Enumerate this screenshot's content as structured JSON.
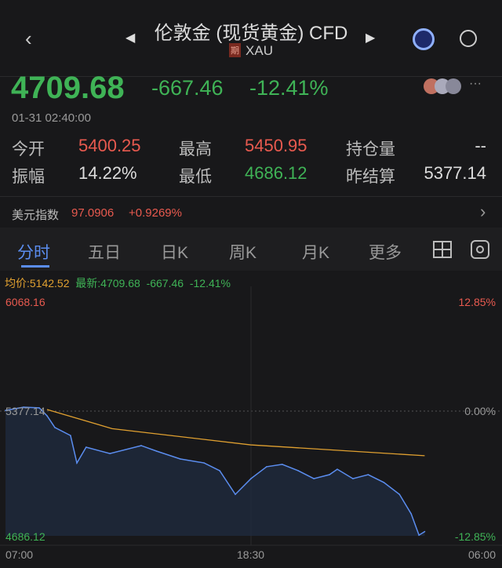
{
  "header": {
    "title": "伦敦金 (现货黄金) CFD",
    "tag": "期",
    "symbol": "XAU"
  },
  "quote": {
    "price": "4709.68",
    "change": "-667.46",
    "change_pct": "-12.41%",
    "time": "01-31 02:40:00",
    "more": "···"
  },
  "stats": [
    {
      "label": "今开",
      "value": "5400.25",
      "color": "red"
    },
    {
      "label": "最高",
      "value": "5450.95",
      "color": "red"
    },
    {
      "label": "持仓量",
      "value": "--",
      "color": "white"
    },
    {
      "label": "振幅",
      "value": "14.22%",
      "color": "white"
    },
    {
      "label": "最低",
      "value": "4686.12",
      "color": "green"
    },
    {
      "label": "昨结算",
      "value": "5377.14",
      "color": "white"
    }
  ],
  "usd_index": {
    "label": "美元指数",
    "value": "97.0906",
    "change": "+0.9269%"
  },
  "tabs": [
    {
      "label": "分时",
      "active": true
    },
    {
      "label": "五日"
    },
    {
      "label": "日K"
    },
    {
      "label": "周K"
    },
    {
      "label": "月K"
    },
    {
      "label": "更多"
    }
  ],
  "chart_info": {
    "avg": "均价:5142.52",
    "latest": "最新:4709.68",
    "change": "-667.46",
    "change_pct": "-12.41%"
  },
  "chart_data": {
    "type": "line",
    "y_top_label": "6068.16",
    "y_bottom_label": "4686.12",
    "y_mid_label": "5377.14",
    "pct_top_label": "12.85%",
    "pct_mid_label": "0.00%",
    "pct_bottom_label": "-12.85%",
    "x_labels": [
      "07:00",
      "18:30",
      "06:00"
    ],
    "ylim": [
      4686.12,
      6068.16
    ],
    "series": [
      {
        "values": [
          [
            "07:00",
            5381
          ],
          [
            "07:51",
            5399
          ],
          [
            "08:35",
            5395
          ],
          [
            "08:57",
            5351
          ],
          [
            "09:19",
            5286
          ],
          [
            "10:03",
            5242
          ],
          [
            "10:21",
            5090
          ],
          [
            "10:47",
            5177
          ],
          [
            "11:54",
            5142
          ],
          [
            "13:22",
            5186
          ],
          [
            "14:06",
            5155
          ],
          [
            "15:12",
            5112
          ],
          [
            "16:19",
            5090
          ],
          [
            "17:03",
            5047
          ],
          [
            "17:47",
            4916
          ],
          [
            "18:31",
            5003
          ],
          [
            "19:15",
            5069
          ],
          [
            "19:59",
            5082
          ],
          [
            "20:44",
            5047
          ],
          [
            "21:28",
            5003
          ],
          [
            "22:12",
            5025
          ],
          [
            "22:34",
            5055
          ],
          [
            "23:18",
            5003
          ],
          [
            "00:01",
            5025
          ],
          [
            "00:45",
            4982
          ],
          [
            "01:29",
            4916
          ],
          [
            "02:02",
            4808
          ],
          [
            "02:24",
            4690
          ],
          [
            "02:40",
            4709.68
          ]
        ],
        "color": "#5b8def"
      },
      {
        "values": [
          [
            "08:57",
            5386
          ],
          [
            "12:00",
            5280
          ],
          [
            "18:30",
            5190
          ],
          [
            "02:40",
            5130
          ]
        ],
        "color": "#e0a030"
      }
    ]
  }
}
